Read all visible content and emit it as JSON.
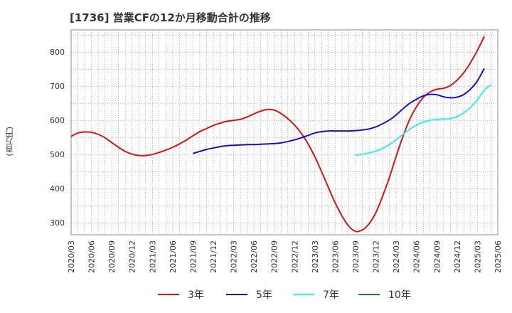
{
  "chart_data": {
    "type": "line",
    "title": "[1736]  営業CFの12か月移動合計の推移",
    "ylabel": "(百万円)",
    "xlabel": "",
    "x_tick_labels": [
      "2020/03",
      "2020/06",
      "2020/09",
      "2020/12",
      "2021/03",
      "2021/06",
      "2021/09",
      "2021/12",
      "2022/03",
      "2022/06",
      "2022/09",
      "2022/12",
      "2023/03",
      "2023/06",
      "2023/09",
      "2023/12",
      "2024/03",
      "2024/06",
      "2024/09",
      "2024/12",
      "2025/03",
      "2025/06"
    ],
    "y_ticks": [
      300,
      400,
      500,
      600,
      700,
      800
    ],
    "ylim": [
      265,
      865
    ],
    "grid": true,
    "legend_position": "bottom",
    "series": [
      {
        "name": "3年",
        "color": "#dd1111",
        "points": [
          [
            "2020/03",
            553
          ],
          [
            "2020/04",
            563
          ],
          [
            "2020/05",
            566
          ],
          [
            "2020/06",
            565
          ],
          [
            "2020/07",
            559
          ],
          [
            "2020/08",
            549
          ],
          [
            "2020/09",
            535
          ],
          [
            "2020/10",
            521
          ],
          [
            "2020/11",
            509
          ],
          [
            "2020/12",
            501
          ],
          [
            "2021/01",
            497
          ],
          [
            "2021/02",
            497
          ],
          [
            "2021/03",
            500
          ],
          [
            "2021/04",
            506
          ],
          [
            "2021/05",
            513
          ],
          [
            "2021/06",
            521
          ],
          [
            "2021/07",
            531
          ],
          [
            "2021/08",
            542
          ],
          [
            "2021/09",
            555
          ],
          [
            "2021/10",
            567
          ],
          [
            "2021/11",
            576
          ],
          [
            "2021/12",
            585
          ],
          [
            "2022/01",
            592
          ],
          [
            "2022/02",
            597
          ],
          [
            "2022/03",
            600
          ],
          [
            "2022/04",
            603
          ],
          [
            "2022/05",
            610
          ],
          [
            "2022/06",
            619
          ],
          [
            "2022/07",
            627
          ],
          [
            "2022/08",
            632
          ],
          [
            "2022/09",
            630
          ],
          [
            "2022/10",
            620
          ],
          [
            "2022/11",
            605
          ],
          [
            "2022/12",
            586
          ],
          [
            "2023/01",
            562
          ],
          [
            "2023/02",
            531
          ],
          [
            "2023/03",
            493
          ],
          [
            "2023/04",
            449
          ],
          [
            "2023/05",
            403
          ],
          [
            "2023/06",
            358
          ],
          [
            "2023/07",
            320
          ],
          [
            "2023/08",
            290
          ],
          [
            "2023/09",
            275
          ],
          [
            "2023/10",
            279
          ],
          [
            "2023/11",
            297
          ],
          [
            "2023/12",
            330
          ],
          [
            "2024/01",
            378
          ],
          [
            "2024/02",
            433
          ],
          [
            "2024/03",
            495
          ],
          [
            "2024/04",
            553
          ],
          [
            "2024/05",
            603
          ],
          [
            "2024/06",
            640
          ],
          [
            "2024/07",
            667
          ],
          [
            "2024/08",
            683
          ],
          [
            "2024/09",
            691
          ],
          [
            "2024/10",
            694
          ],
          [
            "2024/11",
            702
          ],
          [
            "2024/12",
            718
          ],
          [
            "2025/01",
            740
          ],
          [
            "2025/02",
            770
          ],
          [
            "2025/03",
            805
          ],
          [
            "2025/04",
            846
          ]
        ]
      },
      {
        "name": "5年",
        "color": "#1111cc",
        "points": [
          [
            "2021/09",
            503
          ],
          [
            "2021/10",
            509
          ],
          [
            "2021/11",
            515
          ],
          [
            "2021/12",
            519
          ],
          [
            "2022/01",
            523
          ],
          [
            "2022/02",
            526
          ],
          [
            "2022/03",
            527
          ],
          [
            "2022/04",
            528
          ],
          [
            "2022/05",
            529
          ],
          [
            "2022/06",
            529
          ],
          [
            "2022/07",
            530
          ],
          [
            "2022/08",
            531
          ],
          [
            "2022/09",
            532
          ],
          [
            "2022/10",
            534
          ],
          [
            "2022/11",
            538
          ],
          [
            "2022/12",
            543
          ],
          [
            "2023/01",
            549
          ],
          [
            "2023/02",
            556
          ],
          [
            "2023/03",
            563
          ],
          [
            "2023/04",
            567
          ],
          [
            "2023/05",
            569
          ],
          [
            "2023/06",
            569
          ],
          [
            "2023/07",
            569
          ],
          [
            "2023/08",
            569
          ],
          [
            "2023/09",
            570
          ],
          [
            "2023/10",
            572
          ],
          [
            "2023/11",
            575
          ],
          [
            "2023/12",
            581
          ],
          [
            "2024/01",
            590
          ],
          [
            "2024/02",
            601
          ],
          [
            "2024/03",
            616
          ],
          [
            "2024/04",
            634
          ],
          [
            "2024/05",
            650
          ],
          [
            "2024/06",
            662
          ],
          [
            "2024/07",
            672
          ],
          [
            "2024/08",
            676
          ],
          [
            "2024/09",
            675
          ],
          [
            "2024/10",
            669
          ],
          [
            "2024/11",
            666
          ],
          [
            "2024/12",
            668
          ],
          [
            "2025/01",
            676
          ],
          [
            "2025/02",
            692
          ],
          [
            "2025/03",
            716
          ],
          [
            "2025/04",
            752
          ]
        ]
      },
      {
        "name": "7年",
        "color": "#33eeee",
        "points": [
          [
            "2023/09",
            498
          ],
          [
            "2023/10",
            501
          ],
          [
            "2023/11",
            505
          ],
          [
            "2023/12",
            510
          ],
          [
            "2024/01",
            518
          ],
          [
            "2024/02",
            529
          ],
          [
            "2024/03",
            543
          ],
          [
            "2024/04",
            559
          ],
          [
            "2024/05",
            574
          ],
          [
            "2024/06",
            586
          ],
          [
            "2024/07",
            595
          ],
          [
            "2024/08",
            600
          ],
          [
            "2024/09",
            603
          ],
          [
            "2024/10",
            604
          ],
          [
            "2024/11",
            605
          ],
          [
            "2024/12",
            611
          ],
          [
            "2025/01",
            622
          ],
          [
            "2025/02",
            638
          ],
          [
            "2025/03",
            660
          ],
          [
            "2025/04",
            688
          ],
          [
            "2025/05",
            704
          ]
        ]
      },
      {
        "name": "10年",
        "color": "#228822",
        "points": []
      }
    ]
  }
}
